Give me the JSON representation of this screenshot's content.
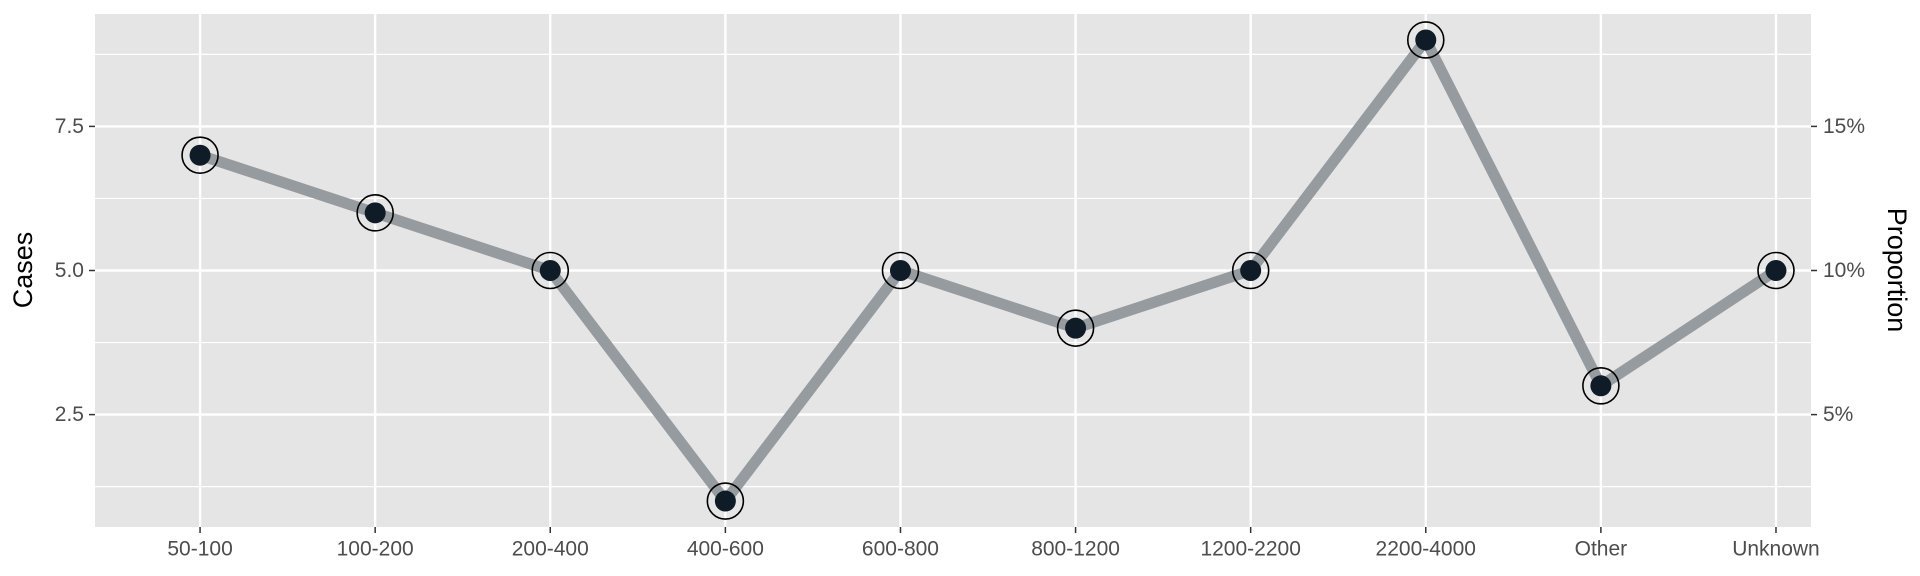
{
  "chart_data": {
    "type": "line",
    "categories": [
      "50-100",
      "100-200",
      "200-400",
      "400-600",
      "600-800",
      "800-1200",
      "1200-2200",
      "2200-4000",
      "Other",
      "Unknown"
    ],
    "values": [
      7,
      6,
      5,
      1,
      5,
      4,
      5,
      9,
      3,
      5
    ],
    "ylabel": "Cases",
    "y2label": "Proportion",
    "ylim": [
      0.55,
      9.45
    ],
    "yticks": [
      2.5,
      5.0,
      7.5
    ],
    "yticklabels": [
      "2.5",
      "5.0",
      "7.5"
    ],
    "y2ticks": [
      0.05,
      0.1,
      0.15
    ],
    "y2ticklabels": [
      "5%",
      "10%",
      "15%"
    ],
    "y2_per_case": 0.02,
    "grid": true,
    "colors": {
      "panel": "#e5e5e5",
      "grid": "#ffffff",
      "line": "#959b9f",
      "point": "#0f1b26",
      "ring": "#000000"
    }
  }
}
